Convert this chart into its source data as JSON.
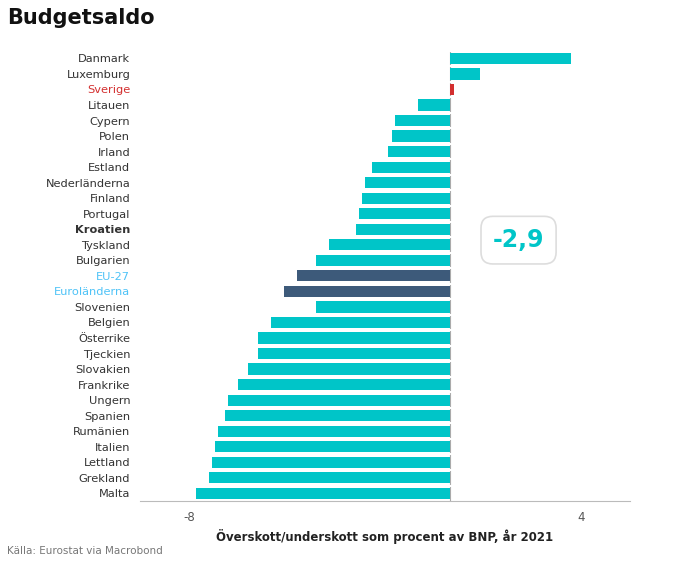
{
  "title": "Budgetsaldo",
  "xlabel": "Överskott/underskott som procent av BNP, år 2021",
  "source": "Källa: Eurostat via Macrobond",
  "xlim": [
    -9.5,
    5.5
  ],
  "xticks": [
    -8,
    4
  ],
  "annotation_value": "-2,9",
  "countries": [
    "Danmark",
    "Luxemburg",
    "Sverige",
    "Litauen",
    "Cypern",
    "Polen",
    "Irland",
    "Estland",
    "Nederländerna",
    "Finland",
    "Portugal",
    "Kroatien",
    "Tyskland",
    "Bulgarien",
    "EU-27",
    "Euroländerna",
    "Slovenien",
    "Belgien",
    "Österrike",
    "Tjeckien",
    "Slovakien",
    "Frankrike",
    "Ungern",
    "Spanien",
    "Rumänien",
    "Italien",
    "Lettland",
    "Grekland",
    "Malta"
  ],
  "values": [
    3.7,
    0.9,
    0.1,
    -1.0,
    -1.7,
    -1.8,
    -1.9,
    -2.4,
    -2.6,
    -2.7,
    -2.8,
    -2.9,
    -3.7,
    -4.1,
    -4.7,
    -5.1,
    -4.1,
    -5.5,
    -5.9,
    -5.9,
    -6.2,
    -6.5,
    -6.8,
    -6.9,
    -7.1,
    -7.2,
    -7.3,
    -7.4,
    -7.8
  ],
  "bar_colors": [
    "#00C5C8",
    "#00C5C8",
    "#D32F2F",
    "#00C5C8",
    "#00C5C8",
    "#00C5C8",
    "#00C5C8",
    "#00C5C8",
    "#00C5C8",
    "#00C5C8",
    "#00C5C8",
    "#00C5C8",
    "#00C5C8",
    "#00C5C8",
    "#3D5A7A",
    "#3D5A7A",
    "#00C5C8",
    "#00C5C8",
    "#00C5C8",
    "#00C5C8",
    "#00C5C8",
    "#00C5C8",
    "#00C5C8",
    "#00C5C8",
    "#00C5C8",
    "#00C5C8",
    "#00C5C8",
    "#00C5C8",
    "#00C5C8"
  ],
  "label_colors": {
    "Sverige": "#D32F2F",
    "EU-27": "#4FC3F7",
    "Euroländerna": "#4FC3F7"
  },
  "label_bold": [
    "Kroatien"
  ],
  "background_color": "#FFFFFF",
  "bar_height": 0.72,
  "title_fontsize": 15,
  "label_fontsize": 8.2,
  "xlabel_fontsize": 8.5,
  "source_fontsize": 7.5,
  "annotation_fontsize": 17
}
